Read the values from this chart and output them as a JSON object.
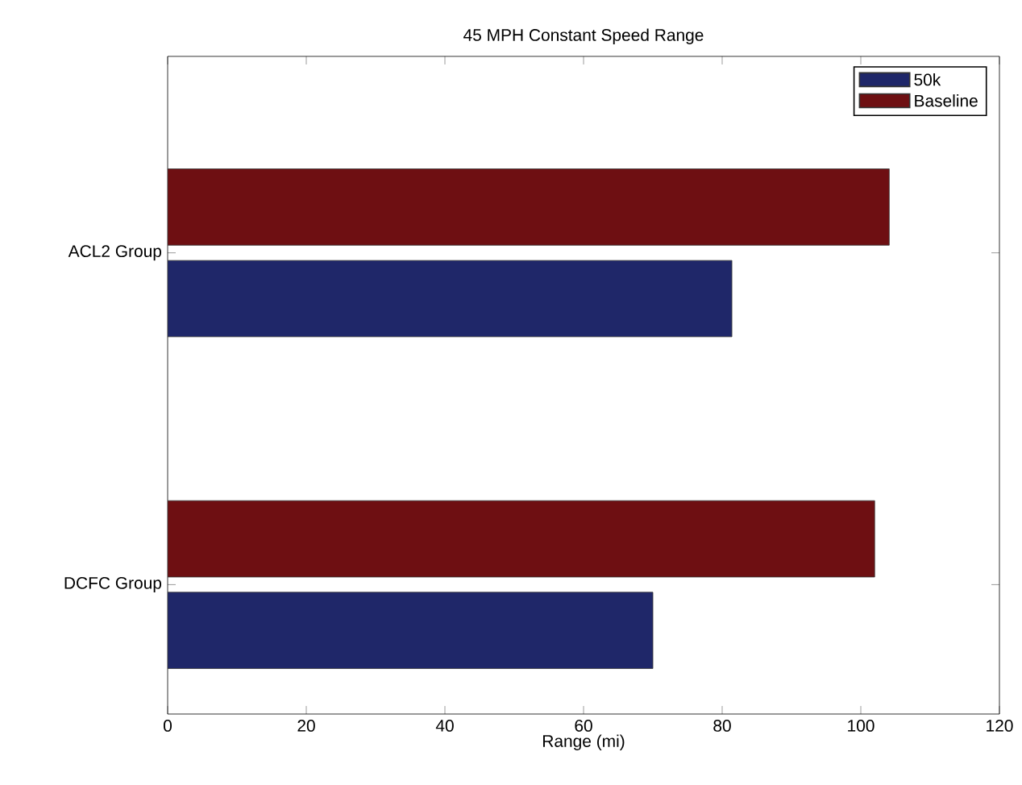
{
  "chart_data": {
    "type": "bar",
    "orientation": "horizontal",
    "title": "45 MPH Constant Speed Range",
    "xlabel": "Range (mi)",
    "categories": [
      "ACL2 Group",
      "DCFC Group"
    ],
    "series": [
      {
        "name": "50k",
        "color": "#1f2769",
        "values": [
          81.4,
          70.0
        ]
      },
      {
        "name": "Baseline",
        "color": "#6e0f12",
        "values": [
          104.1,
          102.0
        ]
      }
    ],
    "xlim": [
      0,
      120
    ],
    "xticks": [
      0,
      20,
      40,
      60,
      80,
      100,
      120
    ],
    "legend": "top right",
    "grid": false
  }
}
